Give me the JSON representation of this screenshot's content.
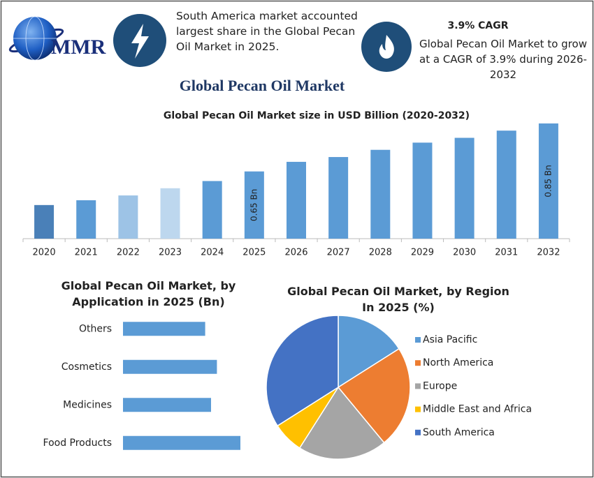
{
  "header": {
    "logo": "MMR",
    "highlight": "South America market accounted largest share in the Global Pecan Oil Market in 2025.",
    "cagr_title": "3.9% CAGR",
    "cagr_text": "Global Pecan Oil Market to grow at a CAGR of 3.9% during 2026-2032"
  },
  "title": "Global Pecan Oil Market",
  "chart_data": [
    {
      "type": "bar",
      "title": "Global Pecan Oil Market size in USD Billion (2020-2032)",
      "categories": [
        "2020",
        "2021",
        "2022",
        "2023",
        "2024",
        "2025",
        "2026",
        "2027",
        "2028",
        "2029",
        "2030",
        "2031",
        "2032"
      ],
      "values": [
        0.51,
        0.53,
        0.55,
        0.58,
        0.61,
        0.65,
        0.69,
        0.71,
        0.74,
        0.77,
        0.79,
        0.82,
        0.85
      ],
      "value_labels": [
        null,
        null,
        null,
        null,
        null,
        "0.65 Bn",
        null,
        null,
        null,
        null,
        null,
        null,
        "0.85 Bn"
      ],
      "colors": [
        "#4a80b8",
        "#5b9bd5",
        "#9dc3e6",
        "#bdd7ee",
        "#5b9bd5",
        "#5b9bd5",
        "#5b9bd5",
        "#5b9bd5",
        "#5b9bd5",
        "#5b9bd5",
        "#5b9bd5",
        "#5b9bd5",
        "#5b9bd5"
      ],
      "ylim": [
        0.37,
        0.87
      ]
    },
    {
      "type": "hbar",
      "title": "Global Pecan Oil Market, by Application in 2025 (Bn)",
      "categories": [
        "Others",
        "Cosmetics",
        "Medicines",
        "Food Products"
      ],
      "values": [
        0.14,
        0.16,
        0.15,
        0.2
      ],
      "color": "#5b9bd5",
      "xlim": [
        0,
        0.25
      ]
    },
    {
      "type": "pie",
      "title": "Global Pecan Oil Market, by Region In 2025 (%)",
      "categories": [
        "Asia Pacific",
        "North America",
        "Europe",
        "Middle East and Africa",
        "South America"
      ],
      "values": [
        16,
        23,
        20,
        7,
        34
      ],
      "colors": [
        "#5b9bd5",
        "#ed7d31",
        "#a5a5a5",
        "#ffc000",
        "#4472c4"
      ],
      "legend": "right"
    }
  ]
}
